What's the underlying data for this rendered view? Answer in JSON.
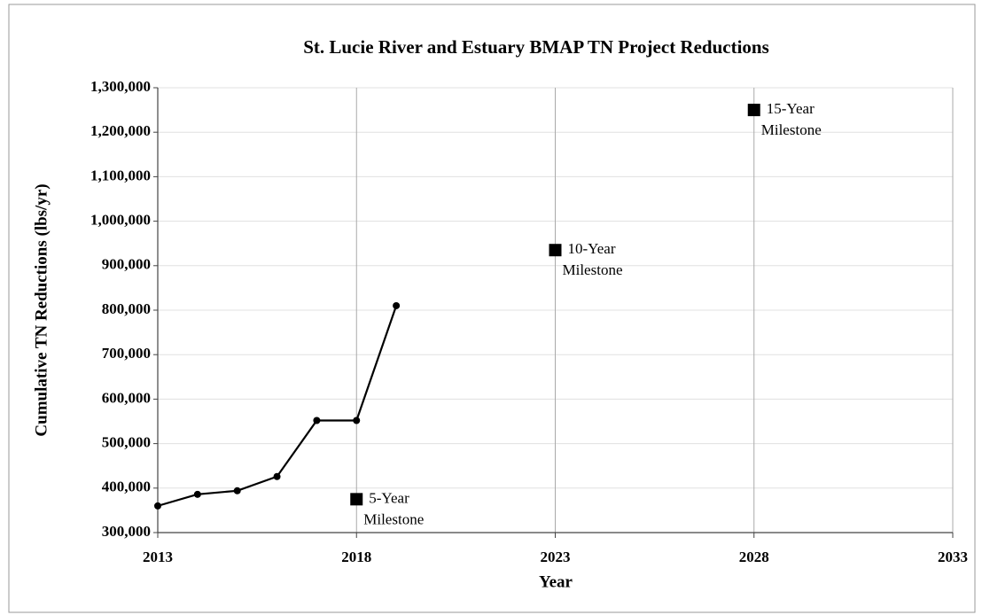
{
  "chart_data": {
    "type": "line",
    "title": "St. Lucie River and Estuary BMAP  TN Project Reductions",
    "x_label": "Year",
    "y_label": "Cumulative TN Reductions (lbs/yr)",
    "xlim": [
      2013,
      2033
    ],
    "xticks": [
      2013,
      2018,
      2023,
      2028,
      2033
    ],
    "ylim": [
      300000,
      1300000
    ],
    "yticks": [
      {
        "value": 300000,
        "label": "300,000"
      },
      {
        "value": 400000,
        "label": "400,000"
      },
      {
        "value": 500000,
        "label": "500,000"
      },
      {
        "value": 600000,
        "label": "600,000"
      },
      {
        "value": 700000,
        "label": "700,000"
      },
      {
        "value": 800000,
        "label": "800,000"
      },
      {
        "value": 900000,
        "label": "900,000"
      },
      {
        "value": 1000000,
        "label": "1,000,000"
      },
      {
        "value": 1100000,
        "label": "1,100,000"
      },
      {
        "value": 1200000,
        "label": "1,200,000"
      },
      {
        "value": 1300000,
        "label": "1,300,000"
      }
    ],
    "grid": true,
    "series": [
      {
        "type": "line",
        "color": "#000000",
        "x": [
          2013,
          2014,
          2015,
          2016,
          2017,
          2018,
          2019
        ],
        "values": [
          360000,
          386000,
          394000,
          426000,
          552000,
          552000,
          810000
        ]
      },
      {
        "type": "scatter",
        "marker": "square",
        "color": "#000000",
        "x": [
          2018,
          2023,
          2028
        ],
        "values": [
          375000,
          935000,
          1250000
        ],
        "annotations": [
          [
            "5-Year",
            "Milestone"
          ],
          [
            "10-Year",
            "Milestone"
          ],
          [
            "15-Year",
            "Milestone"
          ]
        ]
      }
    ]
  }
}
